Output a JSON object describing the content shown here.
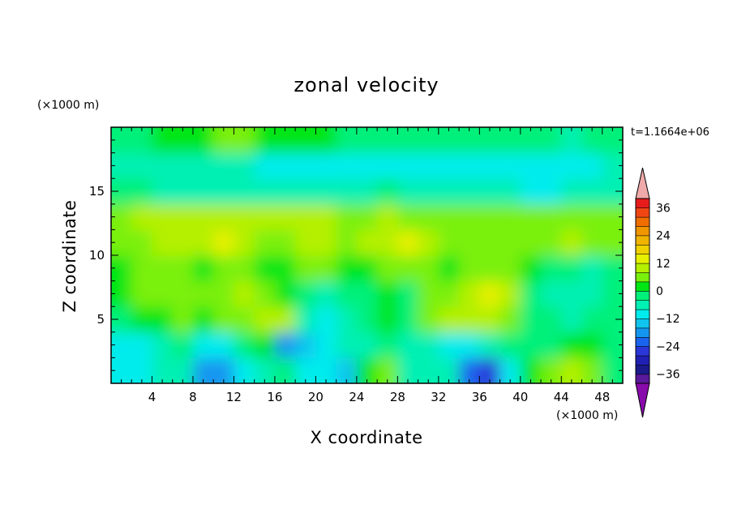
{
  "chart_data": {
    "type": "heatmap",
    "title": "zonal velocity",
    "xlabel": "X coordinate",
    "ylabel": "Z coordinate",
    "x_unit": "(×1000 m)",
    "y_unit": "(×1000 m)",
    "time_label": "t=1.1664e+06",
    "xlim": [
      0,
      50
    ],
    "ylim": [
      0,
      20
    ],
    "x_ticks": [
      4,
      8,
      12,
      16,
      20,
      24,
      28,
      32,
      36,
      40,
      44,
      48
    ],
    "y_ticks": [
      5,
      10,
      15
    ],
    "grid_x": [
      1,
      3,
      5,
      7,
      9,
      11,
      13,
      15,
      17,
      19,
      21,
      23,
      25,
      27,
      29,
      31,
      33,
      35,
      37,
      39,
      41,
      43,
      45,
      47,
      49
    ],
    "grid_z": [
      1,
      3,
      5,
      7,
      9,
      11,
      13,
      15,
      17,
      19
    ],
    "values": [
      [
        -10,
        -12,
        -8,
        -6,
        -20,
        -20,
        -10,
        -6,
        -4,
        -10,
        -12,
        -14,
        0,
        4,
        -6,
        -6,
        -8,
        -24,
        -28,
        -12,
        0,
        6,
        8,
        6,
        -2
      ],
      [
        -10,
        -10,
        -6,
        -4,
        -12,
        -12,
        -4,
        0,
        -18,
        -14,
        -10,
        -8,
        -6,
        -4,
        -6,
        -6,
        -10,
        -12,
        -6,
        -4,
        -4,
        -2,
        0,
        0,
        -4
      ],
      [
        -2,
        0,
        2,
        4,
        2,
        6,
        6,
        10,
        8,
        -6,
        -10,
        -6,
        -4,
        0,
        -4,
        4,
        8,
        10,
        8,
        4,
        -2,
        -4,
        -6,
        -4,
        -2
      ],
      [
        2,
        4,
        6,
        4,
        6,
        6,
        8,
        4,
        2,
        -2,
        -6,
        -4,
        -4,
        2,
        -2,
        4,
        6,
        10,
        12,
        8,
        -2,
        -6,
        -8,
        -6,
        -4
      ],
      [
        2,
        4,
        4,
        6,
        2,
        6,
        4,
        0,
        2,
        6,
        4,
        0,
        2,
        4,
        4,
        4,
        2,
        4,
        6,
        4,
        2,
        -2,
        -4,
        -6,
        -2
      ],
      [
        6,
        6,
        8,
        10,
        10,
        12,
        10,
        6,
        6,
        10,
        8,
        6,
        8,
        10,
        12,
        8,
        6,
        6,
        6,
        6,
        4,
        6,
        8,
        6,
        4
      ],
      [
        6,
        8,
        8,
        8,
        10,
        10,
        10,
        8,
        8,
        8,
        8,
        6,
        6,
        8,
        6,
        6,
        6,
        6,
        6,
        4,
        6,
        6,
        6,
        6,
        6
      ],
      [
        -4,
        -4,
        -6,
        -6,
        -6,
        -6,
        -6,
        -8,
        -8,
        -8,
        -6,
        -6,
        -6,
        -2,
        -6,
        -6,
        -8,
        -8,
        -8,
        -8,
        -10,
        -10,
        -8,
        -8,
        -6
      ],
      [
        -6,
        -6,
        -8,
        -8,
        -8,
        -8,
        -8,
        -10,
        -10,
        -10,
        -10,
        -10,
        -10,
        -10,
        -10,
        -10,
        -12,
        -12,
        -10,
        -10,
        -12,
        -12,
        -10,
        -10,
        -8
      ],
      [
        -4,
        -2,
        0,
        2,
        2,
        4,
        4,
        2,
        0,
        0,
        0,
        -2,
        -2,
        -4,
        -4,
        -4,
        -2,
        -4,
        -4,
        -2,
        -2,
        -4,
        -6,
        -4,
        -4
      ]
    ],
    "colorbar": {
      "levels": [
        -40,
        -36,
        -32,
        -28,
        -24,
        -20,
        -16,
        -12,
        -8,
        -4,
        0,
        4,
        8,
        12,
        16,
        20,
        24,
        28,
        32,
        36,
        40
      ],
      "colors": [
        "#5a189a",
        "#1a1a8a",
        "#2020b4",
        "#2a36d8",
        "#1a64ee",
        "#1496f0",
        "#10c4ee",
        "#00ecec",
        "#00f0b4",
        "#00f07a",
        "#00e614",
        "#7af00e",
        "#b4f000",
        "#e6f000",
        "#f0d200",
        "#f0b400",
        "#f09600",
        "#f06e00",
        "#f04614",
        "#e61c1c"
      ],
      "under_color": "#880aaa",
      "over_color": "#f0aaaa",
      "tick_labels": [
        36,
        24,
        12,
        0,
        -12,
        -24,
        -36
      ]
    }
  }
}
